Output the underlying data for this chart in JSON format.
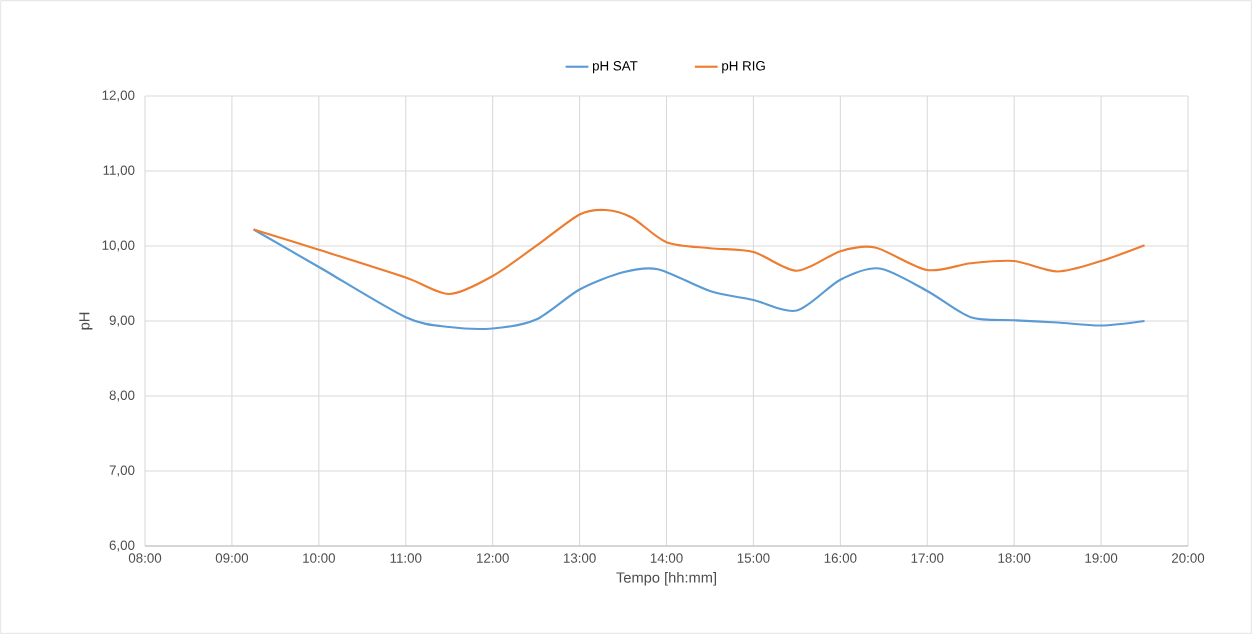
{
  "chart_data": {
    "type": "line",
    "xlabel": "Tempo [hh:mm]",
    "ylabel": "pH",
    "series": [
      {
        "name": "pH SAT",
        "color": "#5b9bd5",
        "x": [
          9.25,
          10,
          11,
          11.5,
          12,
          12.5,
          13,
          13.5,
          13.9,
          14.5,
          15,
          15.5,
          16,
          16.45,
          17,
          17.5,
          18,
          18.5,
          19,
          19.5
        ],
        "values": [
          10.22,
          9.72,
          9.05,
          8.92,
          8.9,
          9.02,
          9.42,
          9.65,
          9.69,
          9.4,
          9.28,
          9.14,
          9.55,
          9.7,
          9.4,
          9.05,
          9.01,
          8.98,
          8.94,
          9.0
        ]
      },
      {
        "name": "pH RIG",
        "color": "#ed7d31",
        "x": [
          9.25,
          10,
          11,
          11.5,
          12,
          12.5,
          13,
          13.3,
          13.6,
          14,
          14.5,
          15,
          15.5,
          16,
          16.4,
          17,
          17.5,
          18,
          18.5,
          19,
          19.5
        ],
        "values": [
          10.22,
          9.95,
          9.58,
          9.36,
          9.6,
          10.0,
          10.42,
          10.48,
          10.38,
          10.05,
          9.97,
          9.92,
          9.67,
          9.93,
          9.98,
          9.68,
          9.77,
          9.8,
          9.66,
          9.8,
          10.01
        ]
      }
    ],
    "xlim": [
      8,
      20
    ],
    "xticks": [
      {
        "value": 8,
        "label": "08:00"
      },
      {
        "value": 9,
        "label": "09:00"
      },
      {
        "value": 10,
        "label": "10:00"
      },
      {
        "value": 11,
        "label": "11:00"
      },
      {
        "value": 12,
        "label": "12:00"
      },
      {
        "value": 13,
        "label": "13:00"
      },
      {
        "value": 14,
        "label": "14:00"
      },
      {
        "value": 15,
        "label": "15:00"
      },
      {
        "value": 16,
        "label": "16:00"
      },
      {
        "value": 17,
        "label": "17:00"
      },
      {
        "value": 18,
        "label": "18:00"
      },
      {
        "value": 19,
        "label": "19:00"
      },
      {
        "value": 20,
        "label": "20:00"
      }
    ],
    "ylim": [
      6,
      12
    ],
    "yticks": [
      {
        "value": 6,
        "label": "6,00"
      },
      {
        "value": 7,
        "label": "7,00"
      },
      {
        "value": 8,
        "label": "8,00"
      },
      {
        "value": 9,
        "label": "9,00"
      },
      {
        "value": 10,
        "label": "10,00"
      },
      {
        "value": 11,
        "label": "11,00"
      },
      {
        "value": 12,
        "label": "12,00"
      }
    ],
    "grid": true,
    "legend": "top",
    "marker": "none",
    "line_style": "solid"
  }
}
